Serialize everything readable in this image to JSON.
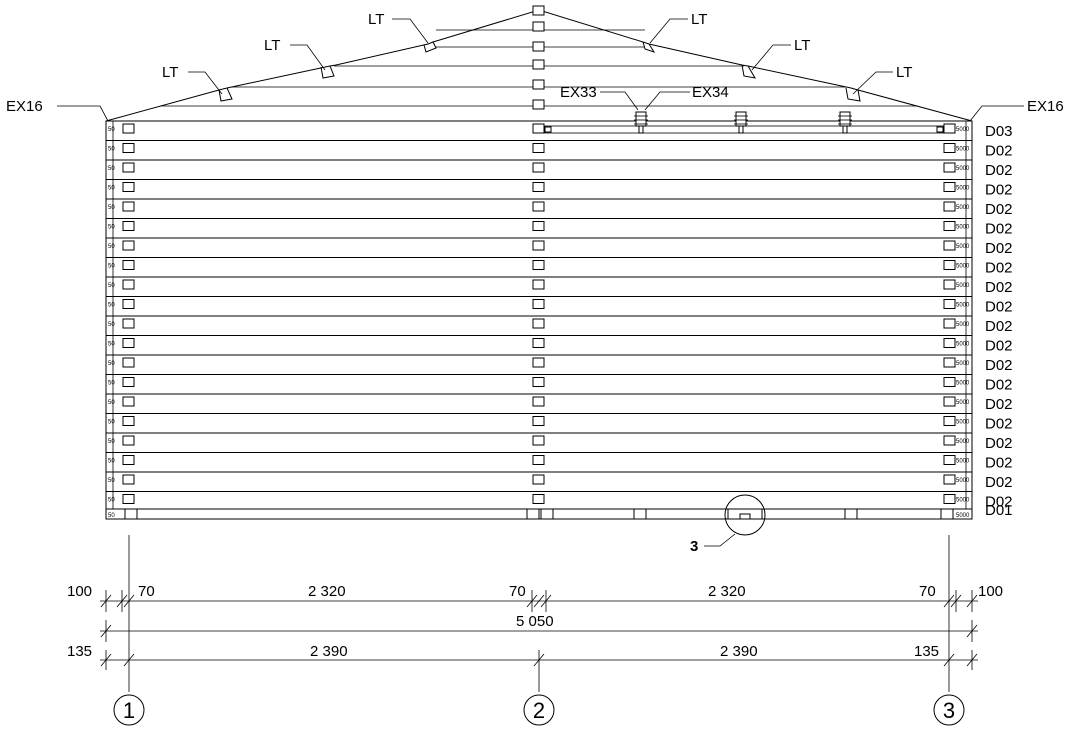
{
  "labels": {
    "lt": "LT",
    "ex16_left": "EX16",
    "ex16_right": "EX16",
    "ex33": "EX33",
    "ex34": "EX34",
    "detail_3": "3"
  },
  "board_layers": {
    "top": "D03",
    "middle": "D02",
    "middle_count": 19,
    "bottom": "D01",
    "left_tag": "50",
    "right_tag": "5000"
  },
  "dimensions": {
    "row1": [
      "100",
      "70",
      "2 320",
      "70",
      "2 320",
      "70",
      "100"
    ],
    "row2": [
      "5 050"
    ],
    "row3": [
      "135",
      "2 390",
      "2 390",
      "135"
    ]
  },
  "axes": [
    "1",
    "2",
    "3"
  ]
}
